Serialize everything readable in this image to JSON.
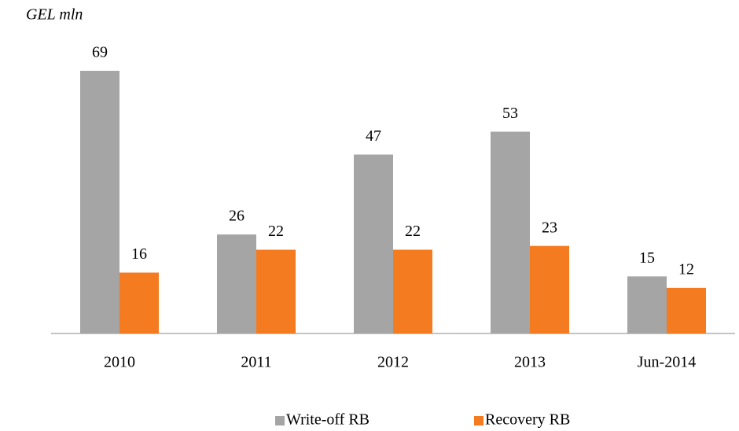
{
  "chart_data": {
    "type": "bar",
    "ylabel": "GEL mln",
    "categories": [
      "2010",
      "2011",
      "2012",
      "2013",
      "Jun-2014"
    ],
    "series": [
      {
        "name": "Write-off RB",
        "color": "#a5a5a5",
        "values": [
          69,
          26,
          47,
          53,
          15
        ]
      },
      {
        "name": "Recovery RB",
        "color": "#f47b20",
        "values": [
          16,
          22,
          22,
          23,
          12
        ]
      }
    ],
    "legend": "bottom"
  }
}
